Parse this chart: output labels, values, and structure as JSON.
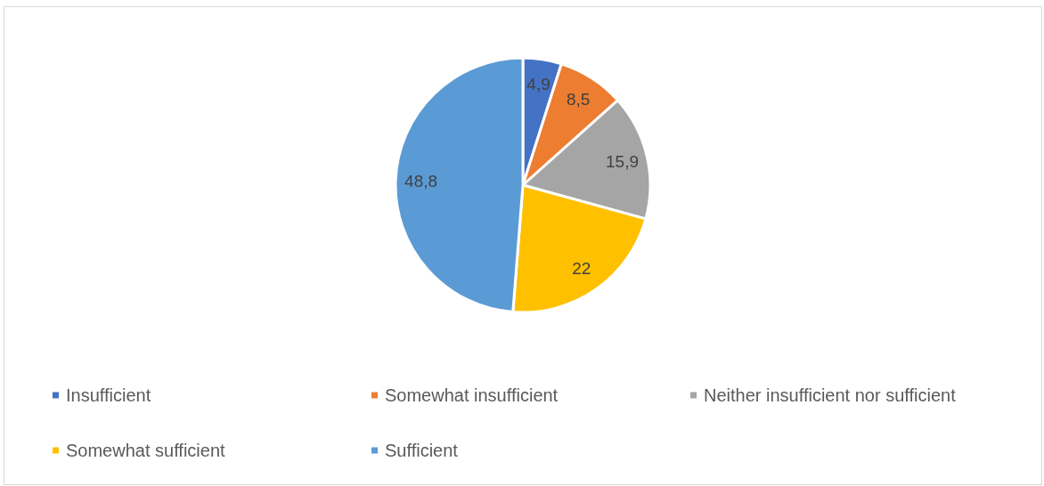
{
  "chart_data": {
    "type": "pie",
    "categories": [
      "Insufficient",
      "Somewhat insufficient",
      "Neither insufficient nor sufficient",
      "Somewhat sufficient",
      "Sufficient"
    ],
    "values": [
      4.9,
      8.5,
      15.9,
      22,
      48.8
    ],
    "colors": [
      "#4472c4",
      "#ed7d31",
      "#a5a5a5",
      "#ffc000",
      "#5b9bd5"
    ],
    "value_labels": [
      "4,9",
      "8,5",
      "15,9",
      "22",
      "48,8"
    ],
    "legend": "bottom"
  }
}
